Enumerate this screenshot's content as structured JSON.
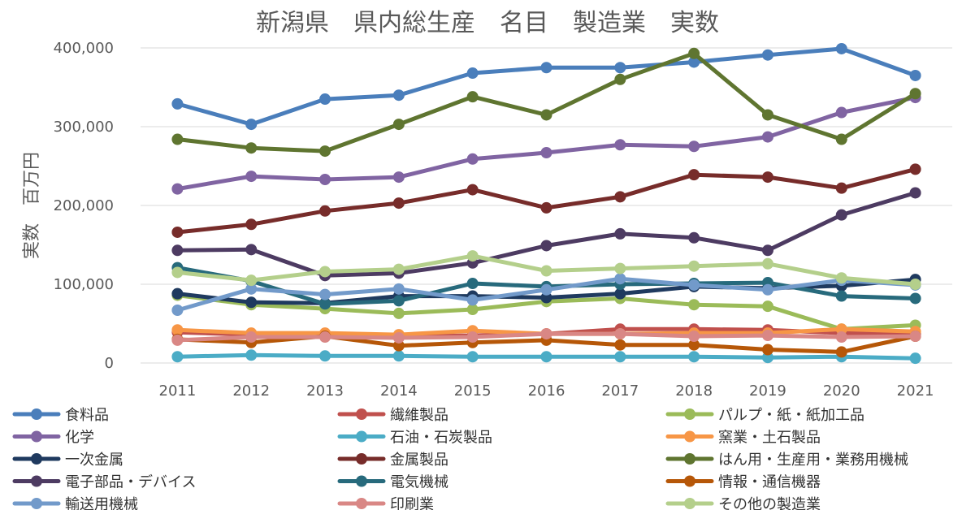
{
  "chart_data": {
    "type": "line",
    "title": "新潟県　県内総生産　名目　製造業　実数",
    "xlabel": "",
    "ylabel": "実数　百万円",
    "ylim": [
      0,
      400000
    ],
    "yticks": [
      0,
      100000,
      200000,
      300000,
      400000
    ],
    "ytick_labels": [
      "0",
      "100,000",
      "200,000",
      "300,000",
      "400,000"
    ],
    "grid": true,
    "legend_position": "bottom",
    "categories": [
      "2011",
      "2012",
      "2013",
      "2014",
      "2015",
      "2016",
      "2017",
      "2018",
      "2019",
      "2020",
      "2021"
    ],
    "series": [
      {
        "name": "食料品",
        "color": "#4a7ebb",
        "values": [
          329000,
          303000,
          335000,
          340000,
          368000,
          375000,
          375000,
          382000,
          391000,
          399000,
          365000
        ]
      },
      {
        "name": "繊維製品",
        "color": "#c0504d",
        "values": [
          39000,
          36000,
          36000,
          34000,
          35000,
          37000,
          43000,
          43000,
          42000,
          38000,
          37000
        ]
      },
      {
        "name": "パルプ・紙・紙加工品",
        "color": "#9bbb59",
        "values": [
          86000,
          74000,
          69000,
          63000,
          68000,
          78000,
          82000,
          74000,
          72000,
          43000,
          48000
        ]
      },
      {
        "name": "化学",
        "color": "#8064a2",
        "values": [
          221000,
          237000,
          233000,
          236000,
          259000,
          267000,
          277000,
          275000,
          287000,
          318000,
          337000
        ]
      },
      {
        "name": "石油・石炭製品",
        "color": "#4bacc6",
        "values": [
          8000,
          10000,
          9000,
          9000,
          8000,
          8000,
          8000,
          8000,
          7000,
          8000,
          6000
        ]
      },
      {
        "name": "窯業・土石製品",
        "color": "#f79646",
        "values": [
          42000,
          38000,
          38000,
          36000,
          41000,
          37000,
          37000,
          38000,
          38000,
          43000,
          40000
        ]
      },
      {
        "name": "一次金属",
        "color": "#1f3a5f",
        "values": [
          88000,
          77000,
          76000,
          85000,
          85000,
          83000,
          88000,
          97000,
          95000,
          98000,
          106000
        ]
      },
      {
        "name": "金属製品",
        "color": "#772c2a",
        "values": [
          166000,
          176000,
          193000,
          203000,
          220000,
          197000,
          211000,
          239000,
          236000,
          222000,
          246000
        ]
      },
      {
        "name": "はん用・生産用・業務用機械",
        "color": "#5f7530",
        "values": [
          284000,
          273000,
          269000,
          303000,
          338000,
          315000,
          360000,
          393000,
          315000,
          284000,
          342000
        ]
      },
      {
        "name": "電子部品・デバイス",
        "color": "#4d3b62",
        "values": [
          143000,
          144000,
          111000,
          114000,
          127000,
          149000,
          164000,
          159000,
          143000,
          188000,
          216000
        ]
      },
      {
        "name": "電気機械",
        "color": "#276a7c",
        "values": [
          121000,
          104000,
          75000,
          79000,
          101000,
          97000,
          100000,
          101000,
          102000,
          85000,
          82000
        ]
      },
      {
        "name": "情報・通信機器",
        "color": "#b65708",
        "values": [
          30000,
          26000,
          34000,
          22000,
          26000,
          29000,
          23000,
          23000,
          17000,
          14000,
          34000
        ]
      },
      {
        "name": "輸送用機械",
        "color": "#729aca",
        "values": [
          67000,
          94000,
          87000,
          94000,
          80000,
          93000,
          107000,
          99000,
          93000,
          105000,
          99000
        ]
      },
      {
        "name": "印刷業",
        "color": "#d98785",
        "values": [
          29000,
          33000,
          33000,
          32000,
          33000,
          37000,
          37000,
          34000,
          35000,
          33000,
          34000
        ]
      },
      {
        "name": "その他の製造業",
        "color": "#b4cf8b",
        "values": [
          115000,
          105000,
          116000,
          119000,
          136000,
          117000,
          120000,
          123000,
          126000,
          108000,
          100000
        ]
      }
    ]
  }
}
